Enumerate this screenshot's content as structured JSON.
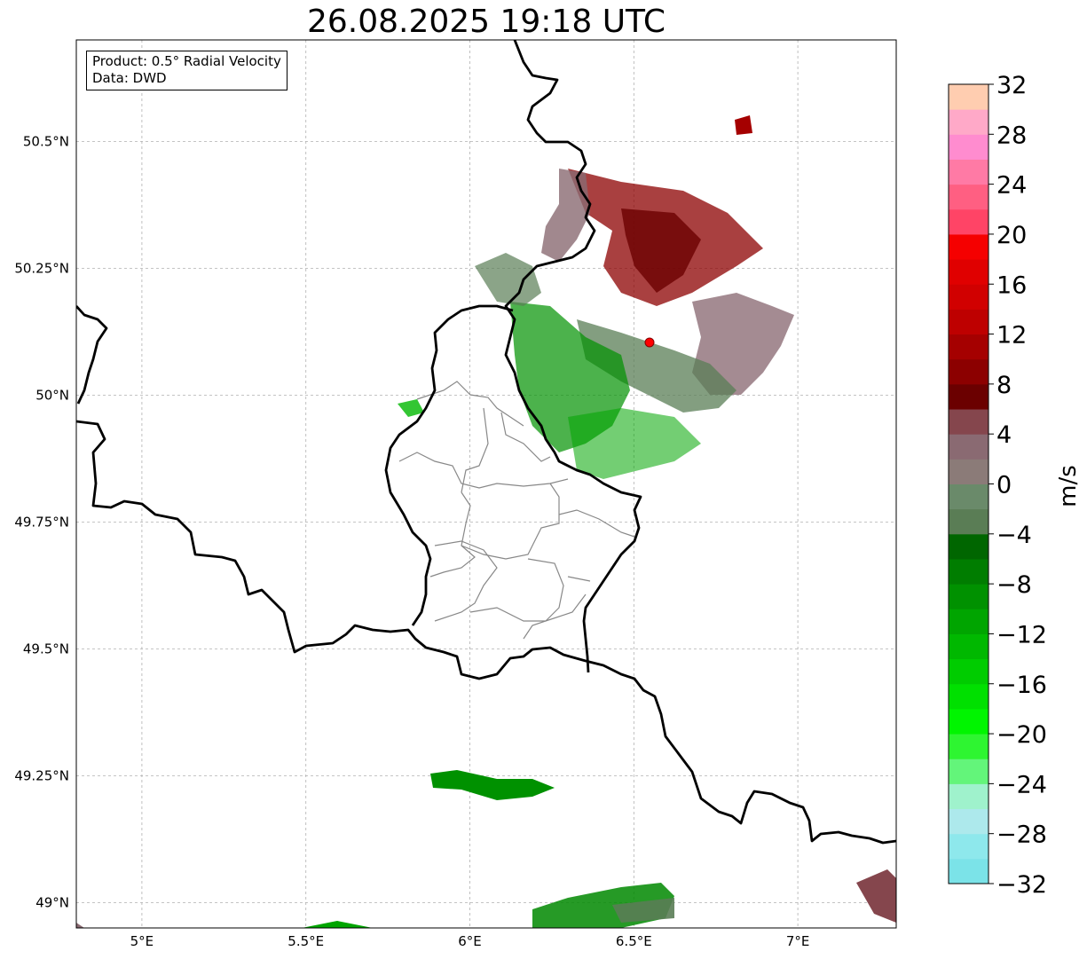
{
  "title": "26.08.2025 19:18 UTC",
  "infobox": {
    "product": "Product: 0.5° Radial Velocity",
    "data": "Data: DWD"
  },
  "map": {
    "lon_range": [
      4.8,
      7.3
    ],
    "lat_range": [
      48.95,
      50.7
    ],
    "lon_ticks": [
      {
        "value": 5.0,
        "label": "5°E"
      },
      {
        "value": 5.5,
        "label": "5.5°E"
      },
      {
        "value": 6.0,
        "label": "6°E"
      },
      {
        "value": 6.5,
        "label": "6.5°E"
      },
      {
        "value": 7.0,
        "label": "7°E"
      }
    ],
    "lat_ticks": [
      {
        "value": 50.5,
        "label": "50.5°N"
      },
      {
        "value": 50.25,
        "label": "50.25°N"
      },
      {
        "value": 50.0,
        "label": "50°N"
      },
      {
        "value": 49.75,
        "label": "49.75°N"
      },
      {
        "value": 49.5,
        "label": "49.5°N"
      },
      {
        "value": 49.25,
        "label": "49.25°N"
      },
      {
        "value": 49.0,
        "label": "49°N"
      }
    ],
    "grid": true,
    "radar_site": {
      "lon": 6.55,
      "lat": 50.11,
      "color": "#ff0000"
    }
  },
  "colorbar": {
    "label": "m/s",
    "min": -32,
    "max": 32,
    "ticks": [
      32,
      28,
      24,
      20,
      16,
      12,
      8,
      4,
      0,
      -4,
      -8,
      -12,
      -16,
      -20,
      -24,
      -28,
      -32
    ],
    "tick_labels": [
      "32",
      "28",
      "24",
      "20",
      "16",
      "12",
      "8",
      "4",
      "0",
      "−4",
      "−8",
      "−12",
      "−16",
      "−20",
      "−24",
      "−28",
      "−32"
    ],
    "colors_bottom_to_top": [
      "#7be3e8",
      "#8ee8ec",
      "#ade9ec",
      "#9ff2cc",
      "#63f57a",
      "#2ef531",
      "#00f500",
      "#00e000",
      "#00cc00",
      "#00b800",
      "#00a500",
      "#009100",
      "#007d00",
      "#006600",
      "#5a7d55",
      "#6a8a6a",
      "#8b7b78",
      "#8a6a72",
      "#85464d",
      "#6b0000",
      "#8c0000",
      "#a50000",
      "#be0000",
      "#d10000",
      "#e00000",
      "#f50000",
      "#ff4466",
      "#ff5f82",
      "#ff7aa5",
      "#ff8ccf",
      "#ffa9c8",
      "#ffcdb0"
    ]
  }
}
